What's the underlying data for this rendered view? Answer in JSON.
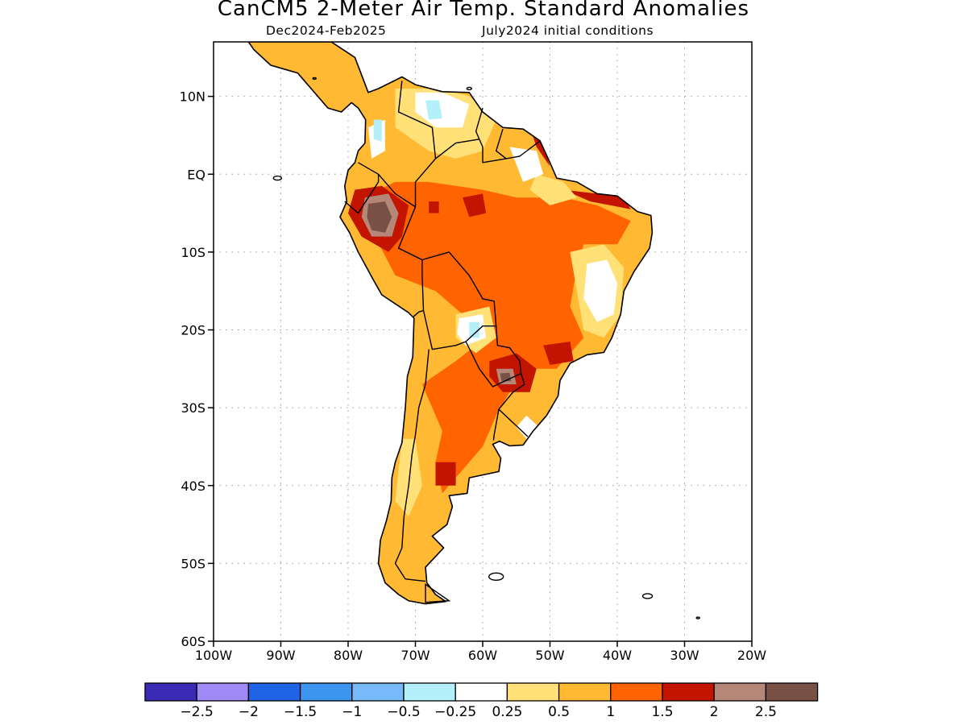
{
  "title": "CanCM5 2-Meter Air Temp. Standard Anomalies",
  "subtitle_left": "Dec2024-Feb2025",
  "subtitle_right": "July2024 initial conditions",
  "axes": {
    "x_range": [
      -100,
      -20
    ],
    "y_range": [
      -60,
      17
    ],
    "x_ticks": [
      {
        "value": -100,
        "label": "100W"
      },
      {
        "value": -90,
        "label": "90W"
      },
      {
        "value": -80,
        "label": "80W"
      },
      {
        "value": -70,
        "label": "70W"
      },
      {
        "value": -60,
        "label": "60W"
      },
      {
        "value": -50,
        "label": "50W"
      },
      {
        "value": -40,
        "label": "40W"
      },
      {
        "value": -30,
        "label": "30W"
      },
      {
        "value": -20,
        "label": "20W"
      }
    ],
    "y_ticks": [
      {
        "value": 10,
        "label": "10N"
      },
      {
        "value": 0,
        "label": "EQ"
      },
      {
        "value": -10,
        "label": "10S"
      },
      {
        "value": -20,
        "label": "20S"
      },
      {
        "value": -30,
        "label": "30S"
      },
      {
        "value": -40,
        "label": "40S"
      },
      {
        "value": -50,
        "label": "50S"
      },
      {
        "value": -60,
        "label": "60S"
      }
    ],
    "grid": "dotted"
  },
  "colorbar": {
    "colors": [
      "#3b2bb4",
      "#a08af5",
      "#1f64e6",
      "#3c96f0",
      "#78b9fa",
      "#b4f0fa",
      "#ffffff",
      "#ffe178",
      "#ffb932",
      "#ff6400",
      "#c31400",
      "#b48778",
      "#785046"
    ],
    "labels": [
      "-2.5",
      "-2",
      "-1.5",
      "-1",
      "-0.5",
      "-0.25",
      "0.25",
      "0.5",
      "1",
      "1.5",
      "2",
      "2.5"
    ]
  },
  "chart_data": {
    "type": "heatmap",
    "title": "CanCM5 2-Meter Air Temp. Standard Anomalies",
    "subtitle": "Dec2024-Feb2025    July2024 initial conditions",
    "region": "South America",
    "variable": "2-meter air temperature standardized anomaly",
    "xlabel": "",
    "ylabel": "",
    "xlim": [
      -100,
      -20
    ],
    "ylim": [
      -60,
      17
    ],
    "features": [
      {
        "name": "peak warm anomaly",
        "lon": -75,
        "lat": -5,
        "value": 2.5
      },
      {
        "name": "warm anomaly",
        "lon": -56,
        "lat": -26,
        "value": 2.5
      },
      {
        "name": "warm anomaly",
        "lon": -48,
        "lat": -23,
        "value": 1.75
      },
      {
        "name": "warm anomaly",
        "lon": -66,
        "lat": -38,
        "value": 1.75
      },
      {
        "name": "near-neutral",
        "lon": -43,
        "lat": -14,
        "value": 0
      },
      {
        "name": "near-neutral",
        "lon": -62,
        "lat": -20,
        "value": 0
      },
      {
        "name": "slight cool",
        "lon": -67,
        "lat": 8,
        "value": -0.3
      },
      {
        "name": "slight cool",
        "lon": -61,
        "lat": -21,
        "value": -0.3
      }
    ]
  }
}
